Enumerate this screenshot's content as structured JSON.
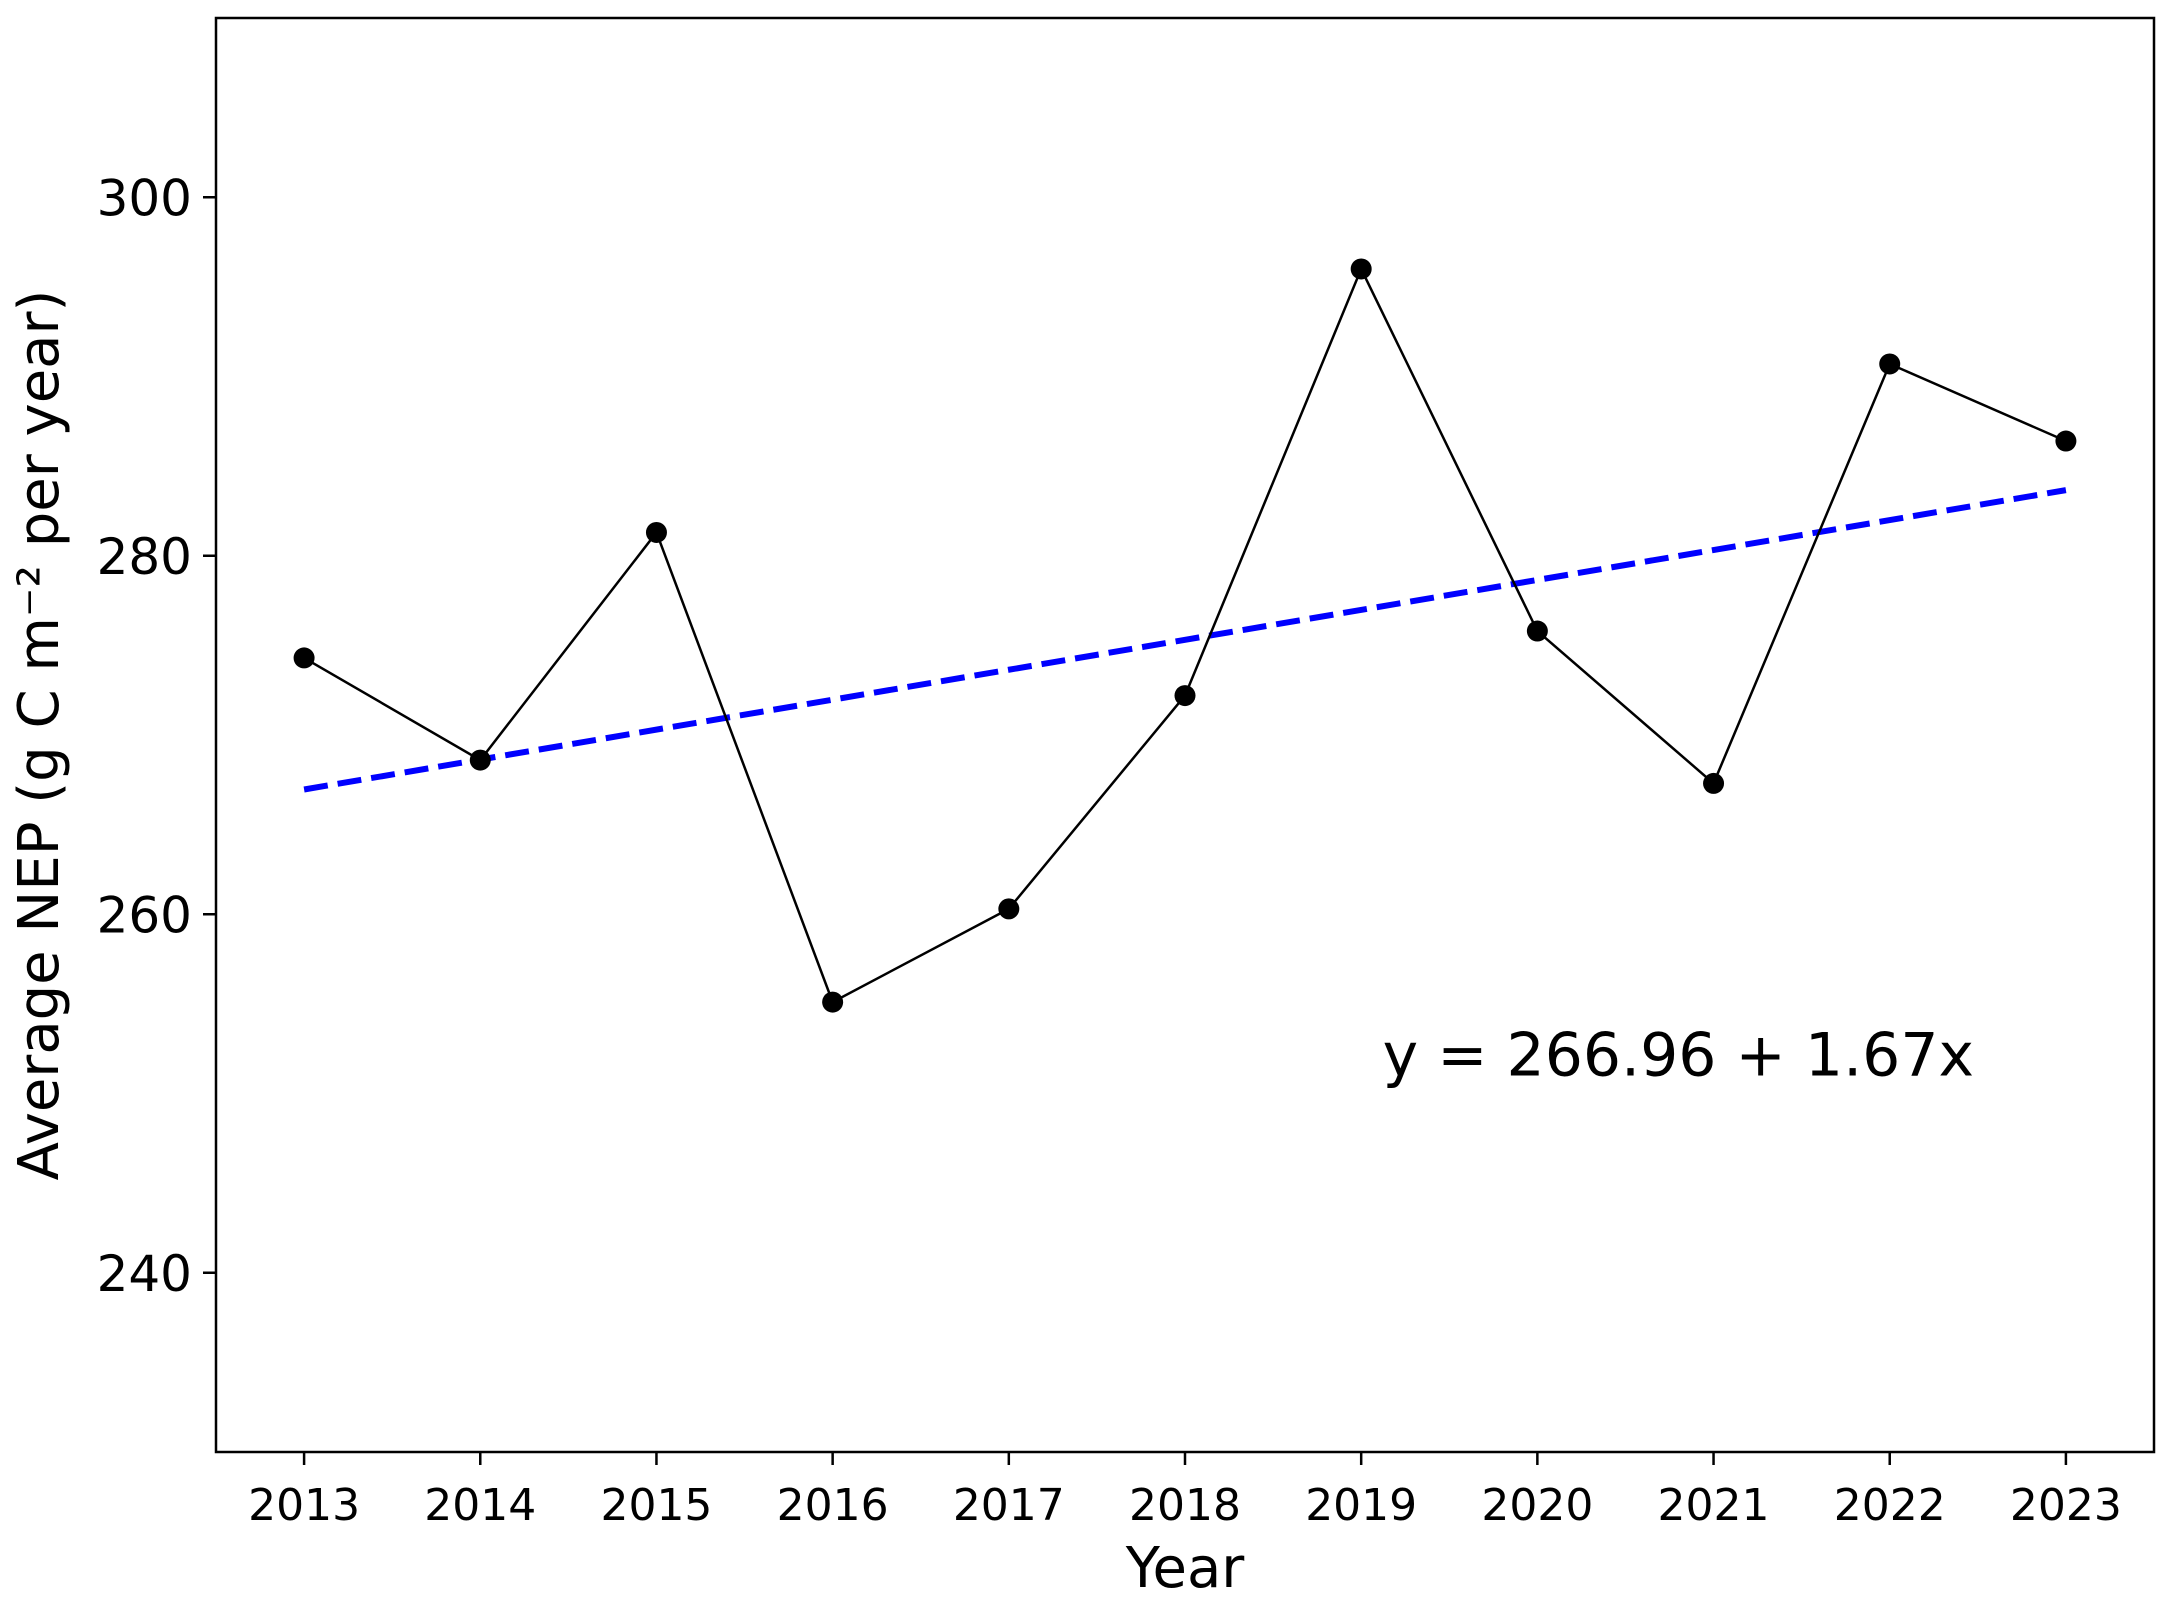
{
  "chart_data": {
    "type": "line",
    "title": "",
    "xlabel": "Year",
    "ylabel": "Average NEP (g C m⁻² per year)",
    "xlim": [
      2012.5,
      2023.5
    ],
    "ylim": [
      230,
      310
    ],
    "x_ticks": [
      2013,
      2014,
      2015,
      2016,
      2017,
      2018,
      2019,
      2020,
      2021,
      2022,
      2023
    ],
    "y_ticks": [
      240,
      260,
      280,
      300
    ],
    "grid": false,
    "legend": "none",
    "series": [
      {
        "kind": "line-with-markers",
        "color": "#000000",
        "marker": "circle",
        "x": [
          2013,
          2014,
          2015,
          2016,
          2017,
          2018,
          2019,
          2020,
          2021,
          2022,
          2023
        ],
        "y": [
          274.3,
          268.6,
          281.3,
          255.1,
          260.3,
          272.2,
          296.0,
          275.8,
          267.3,
          290.7,
          286.4
        ]
      },
      {
        "kind": "trend-line",
        "color": "#0000ff",
        "style": "dashed",
        "x": [
          2013,
          2023
        ],
        "y": [
          266.96,
          283.66
        ]
      }
    ],
    "annotations": [
      {
        "text": "y = 266.96 + 1.67x",
        "x": 2020.8,
        "y": 251
      }
    ]
  }
}
